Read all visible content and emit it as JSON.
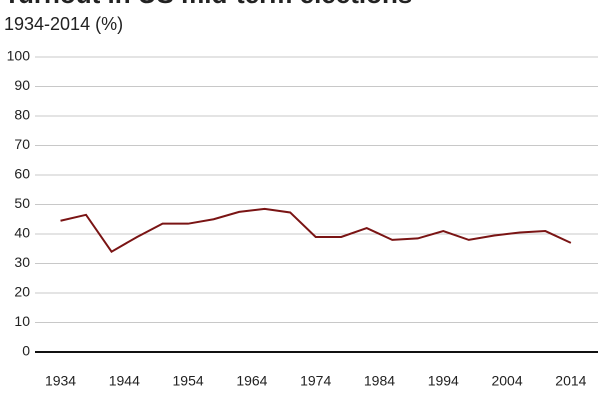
{
  "chart_data": {
    "type": "line",
    "title": "Turnout in US mid-term elections",
    "subtitle": "1934-2014 (%)",
    "x": [
      1934,
      1938,
      1942,
      1946,
      1950,
      1954,
      1958,
      1962,
      1966,
      1970,
      1974,
      1978,
      1982,
      1986,
      1990,
      1994,
      1998,
      2002,
      2006,
      2010,
      2014
    ],
    "series": [
      {
        "name": "Turnout",
        "color": "#7a1414",
        "values": [
          44.5,
          46.5,
          34,
          39,
          43.5,
          43.5,
          45,
          47.5,
          48.5,
          47.3,
          39,
          39,
          42,
          38,
          38.5,
          41,
          38,
          39.5,
          40.5,
          41,
          37
        ]
      }
    ],
    "xlim": [
      1930,
      2017
    ],
    "xticks": [
      1934,
      1944,
      1954,
      1964,
      1974,
      1984,
      1994,
      2004,
      2014
    ],
    "ylim": [
      0,
      100
    ],
    "yticks": [
      0,
      10,
      20,
      30,
      40,
      50,
      60,
      70,
      80,
      90,
      100
    ],
    "grid": true
  }
}
